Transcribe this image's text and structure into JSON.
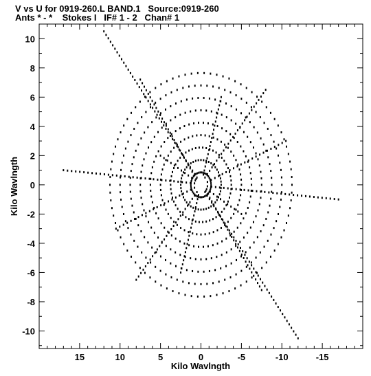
{
  "header": {
    "line1": "V vs U for 0919-260.L BAND.1   Source:0919-260",
    "line2": "Ants * - *    Stokes I   IF# 1 - 2   Chan# 1"
  },
  "chart_data": {
    "type": "scatter",
    "title": "V vs U for 0919-260.L BAND.1   Source:0919-260",
    "subtitle": "Ants * - *    Stokes I   IF# 1 - 2   Chan# 1",
    "xlabel": "Kilo Wavlngth",
    "ylabel": "Kilo Wavlngth",
    "xlim": [
      20.0,
      -20.0
    ],
    "ylim": [
      -11.2,
      11.0
    ],
    "x_ticks": [
      15,
      10,
      5,
      0,
      -5,
      -10,
      -15
    ],
    "y_ticks": [
      10,
      8,
      6,
      4,
      2,
      0,
      -2,
      -4,
      -6,
      -8,
      -10
    ],
    "grid": false,
    "colors": {
      "points": "#000000",
      "frame": "#000000",
      "background": "#ffffff"
    },
    "uv_tracks": [
      {
        "u": [
          0.5,
          12.0
        ],
        "v": [
          0.5,
          10.5
        ]
      },
      {
        "u": [
          -0.5,
          -12.0
        ],
        "v": [
          -0.5,
          -10.5
        ]
      },
      {
        "u": [
          0.5,
          8.0
        ],
        "v": [
          -0.5,
          -6.5
        ]
      },
      {
        "u": [
          -0.5,
          -8.0
        ],
        "v": [
          0.5,
          6.5
        ]
      },
      {
        "u": [
          0.8,
          17.0
        ],
        "v": [
          0.1,
          1.0
        ]
      },
      {
        "u": [
          -0.8,
          -17.0
        ],
        "v": [
          -0.1,
          -1.0
        ]
      },
      {
        "u": [
          0.6,
          7.5
        ],
        "v": [
          0.4,
          7.2
        ]
      },
      {
        "u": [
          -0.6,
          -7.5
        ],
        "v": [
          -0.4,
          -7.2
        ]
      },
      {
        "u": [
          0.8,
          10.5
        ],
        "v": [
          -0.2,
          -3.0
        ]
      },
      {
        "u": [
          -0.8,
          -10.5
        ],
        "v": [
          0.2,
          3.0
        ]
      },
      {
        "u": [
          0.3,
          2.5
        ],
        "v": [
          -0.7,
          -6.0
        ]
      },
      {
        "u": [
          -0.3,
          -2.5
        ],
        "v": [
          0.7,
          6.0
        ]
      },
      {
        "u": [
          0.7,
          5.0
        ],
        "v": [
          0.3,
          2.0
        ]
      },
      {
        "u": [
          -0.7,
          -5.0
        ],
        "v": [
          -0.3,
          -2.0
        ]
      }
    ]
  }
}
